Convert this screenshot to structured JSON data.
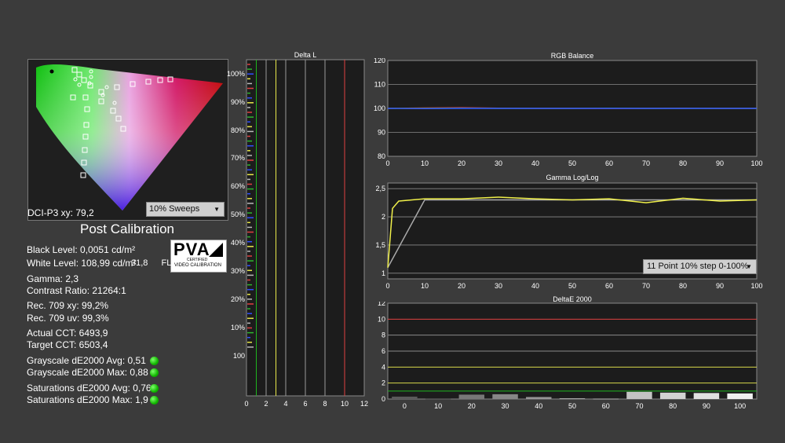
{
  "cie": {
    "label_prefix": "DCI-P3 xy: ",
    "label_value": "79,2",
    "sweeps_value": "10% Sweeps"
  },
  "post_calibration": {
    "title": "Post Calibration",
    "logo_text": "PVA",
    "logo_sub1": "CERTIFIED",
    "logo_sub2": "VIDEO CALIBRATION",
    "fl_value": "31,8",
    "fl_unit": "FL",
    "metrics": [
      "Black Level: 0,0051 cd/m²",
      "White Level: 108,99 cd/m²",
      "Gamma: 2,3",
      "Contrast Ratio: 21264:1",
      "Rec. 709 xy: 99,2%",
      "Rec. 709 uv: 99,3%",
      "Actual CCT: 6493,9",
      "Target CCT: 6503,4",
      "Grayscale dE2000 Avg: 0,51",
      "Grayscale dE2000 Max: 0,88",
      "Saturations dE2000 Avg: 0,76",
      "Saturations dE2000 Max: 1,9"
    ],
    "status_colors": {
      "pass": "#16c200"
    }
  },
  "delta_l": {
    "title": "Delta L",
    "y_ticks": [
      "100%",
      "90%",
      "80%",
      "70%",
      "60%",
      "50%",
      "40%",
      "30%",
      "20%",
      "10%",
      "100"
    ],
    "x_ticks": [
      "0",
      "2",
      "4",
      "6",
      "8",
      "10",
      "12"
    ],
    "line_colors": {
      "green": "#1fb51f",
      "yellow": "#e8e84a",
      "red": "#e04040"
    }
  },
  "rgb_balance": {
    "title": "RGB Balance",
    "y_ticks": [
      "120",
      "110",
      "100",
      "90",
      "80"
    ],
    "x_ticks": [
      "0",
      "10",
      "20",
      "30",
      "40",
      "50",
      "60",
      "70",
      "80",
      "90",
      "100"
    ]
  },
  "gamma": {
    "title": "Gamma Log/Log",
    "y_ticks": [
      "2,5",
      "2",
      "1,5",
      "1"
    ],
    "x_ticks": [
      "0",
      "10",
      "20",
      "30",
      "40",
      "50",
      "60",
      "70",
      "80",
      "90",
      "100"
    ],
    "dropdown_value": "11 Point 10% step 0-100%"
  },
  "delta_e": {
    "title": "DeltaE 2000",
    "y_ticks": [
      "12",
      "10",
      "8",
      "6",
      "4",
      "2",
      "0"
    ],
    "x_ticks": [
      "0",
      "10",
      "20",
      "30",
      "40",
      "50",
      "60",
      "70",
      "80",
      "90",
      "100"
    ]
  },
  "chart_data": [
    {
      "type": "line",
      "title": "RGB Balance",
      "x": [
        0,
        10,
        20,
        30,
        40,
        50,
        60,
        70,
        80,
        90,
        100
      ],
      "ylim": [
        80,
        120
      ],
      "series": [
        {
          "color": "#e04040",
          "values": [
            100,
            100.2,
            100.3,
            100.1,
            100,
            100,
            100,
            100,
            100.1,
            100,
            100
          ]
        },
        {
          "color": "#2fb52f",
          "values": [
            100,
            100,
            100.1,
            100,
            100,
            100,
            100.1,
            100,
            100,
            100,
            100
          ]
        },
        {
          "color": "#3050ff",
          "values": [
            100,
            99.9,
            100,
            100,
            100,
            100,
            100,
            100,
            100,
            100,
            100
          ]
        }
      ]
    },
    {
      "type": "line",
      "title": "Gamma Log/Log",
      "x": [
        0,
        10,
        20,
        30,
        40,
        50,
        60,
        70,
        80,
        90,
        100
      ],
      "ylim": [
        0.9,
        2.6
      ],
      "series": [
        {
          "color": "#f0f04a",
          "values": [
            1.1,
            2.32,
            2.32,
            2.35,
            2.32,
            2.3,
            2.32,
            2.25,
            2.33,
            2.28,
            2.3
          ]
        },
        {
          "color": "#aaaaaa",
          "values": [
            1.1,
            2.3,
            2.3,
            2.3,
            2.3,
            2.3,
            2.3,
            2.3,
            2.3,
            2.3,
            2.3
          ]
        }
      ]
    },
    {
      "type": "bar",
      "title": "DeltaE 2000",
      "categories": [
        "0",
        "10",
        "20",
        "30",
        "40",
        "50",
        "60",
        "70",
        "80",
        "90",
        "100"
      ],
      "values": [
        0.3,
        0.05,
        0.55,
        0.6,
        0.25,
        0.1,
        0.05,
        0.9,
        0.8,
        0.75,
        0.7
      ],
      "ylim": [
        0,
        12
      ]
    }
  ]
}
